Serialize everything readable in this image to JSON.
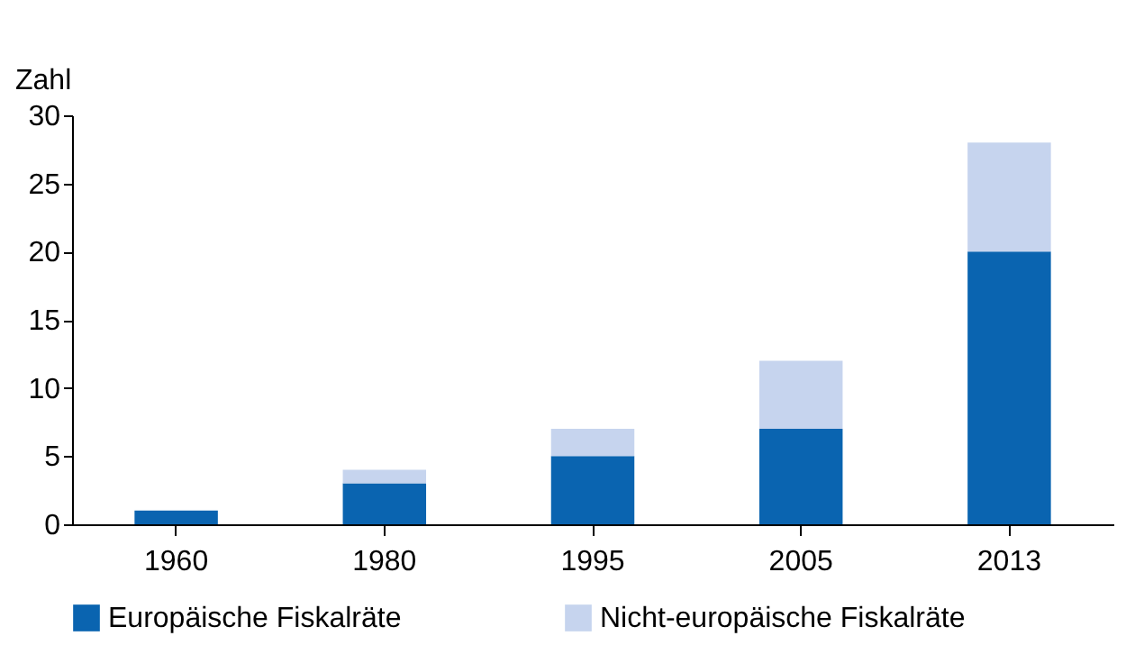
{
  "chart_data": {
    "type": "bar",
    "ylabel": "Zahl",
    "categories": [
      "1960",
      "1980",
      "1995",
      "2005",
      "2013"
    ],
    "stacked": true,
    "series": [
      {
        "name": "Europäische Fiskalräte",
        "color": "#0a64b0",
        "values": [
          1,
          3,
          5,
          7,
          20
        ]
      },
      {
        "name": "Nicht-europäische Fiskalräte",
        "color": "#c6d4ee",
        "values": [
          0,
          1,
          2,
          5,
          8
        ]
      }
    ],
    "ylim": [
      0,
      30
    ],
    "yticks": [
      0,
      5,
      10,
      15,
      20,
      25,
      30
    ],
    "grid": false,
    "legend": "bottom"
  }
}
